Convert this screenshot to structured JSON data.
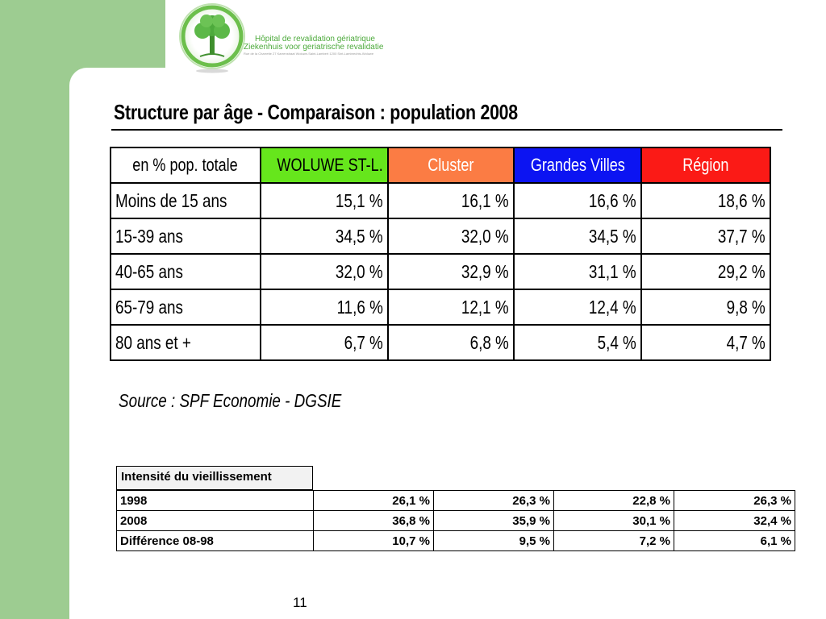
{
  "logo": {
    "line1": "Hôpital de revalidation gériatrique",
    "line2": "Ziekenhuis voor geriatrische revalidatie",
    "line3": "Rue de la Charrette 27 Karrenstraat Woluwe-Saint-Lambert 1200 Sint-Lambrechts-Woluwe"
  },
  "title": "Structure par âge - Comparaison : population 2008",
  "colors": {
    "woluwe": "#66e61c",
    "cluster": "#fb7c44",
    "grandes_villes": "#0c14f2",
    "region": "#fb1a16",
    "background_band": "#9dcc91",
    "aging_header_bg": "#f2f2f2"
  },
  "main_table": {
    "headers": [
      "en % pop. totale",
      "WOLUWE ST-L.",
      "Cluster",
      "Grandes Villes",
      "Région"
    ],
    "rows": [
      [
        "Moins de 15 ans",
        "15,1 %",
        "16,1 %",
        "16,6 %",
        "18,6 %"
      ],
      [
        "15-39 ans",
        "34,5 %",
        "32,0 %",
        "34,5 %",
        "37,7 %"
      ],
      [
        "40-65 ans",
        "32,0 %",
        "32,9 %",
        "31,1 %",
        "29,2 %"
      ],
      [
        "65-79 ans",
        "11,6 %",
        "12,1 %",
        "12,4 %",
        "9,8 %"
      ],
      [
        "80 ans et +",
        "6,7 %",
        "6,8 %",
        "5,4 %",
        "4,7 %"
      ]
    ]
  },
  "source": "Source : SPF Economie - DGSIE",
  "aging_table": {
    "header": "Intensité du vieillissement",
    "rows": [
      [
        "1998",
        "26,1 %",
        "26,3 %",
        "22,8 %",
        "26,3 %"
      ],
      [
        "2008",
        "36,8 %",
        "35,9 %",
        "30,1 %",
        "32,4 %"
      ],
      [
        "Différence 08-98",
        "10,7 %",
        "9,5 %",
        "7,2 %",
        "6,1 %"
      ]
    ]
  },
  "page_number": "11"
}
